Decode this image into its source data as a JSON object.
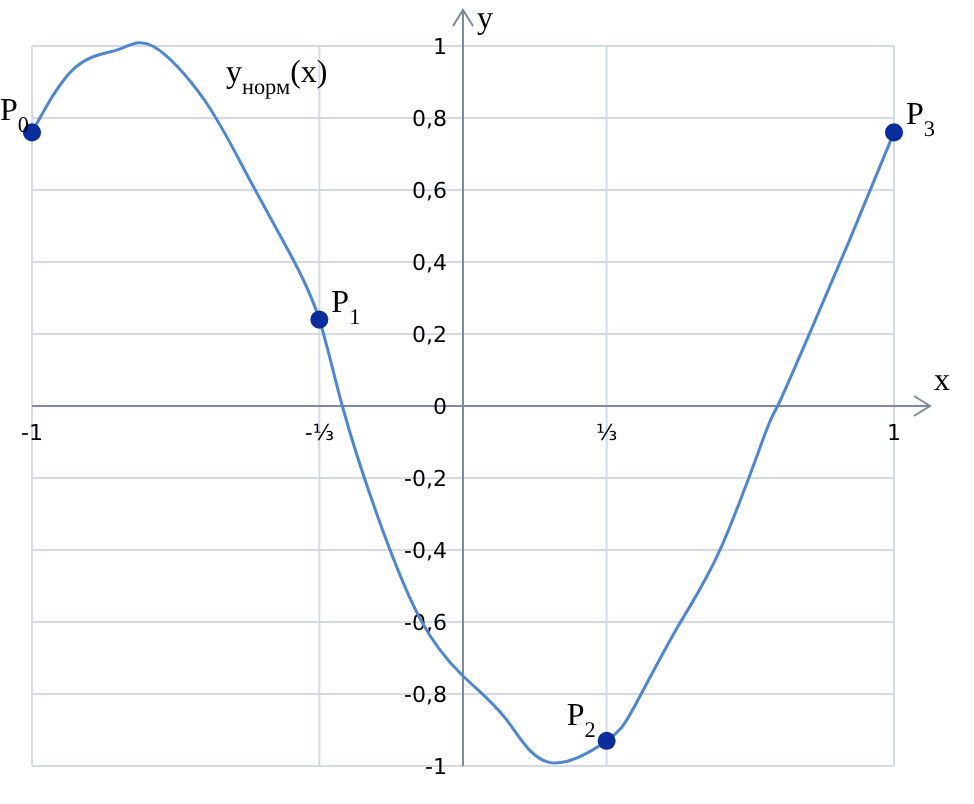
{
  "chart_data": {
    "type": "line",
    "xlabel": "x",
    "ylabel": "y",
    "grid": true,
    "xlim": [
      -1,
      1
    ],
    "ylim": [
      -1,
      1
    ],
    "xticks": [
      -1,
      {
        "value": -0.3333,
        "label": "-⅓"
      },
      {
        "value": 0.3333,
        "label": "⅓"
      },
      1
    ],
    "yticks": [
      {
        "value": -1,
        "label": "-1"
      },
      {
        "value": -0.8,
        "label": "-0,8"
      },
      {
        "value": -0.6,
        "label": "-0,6"
      },
      {
        "value": -0.4,
        "label": "-0,4"
      },
      {
        "value": -0.2,
        "label": "-0,2"
      },
      {
        "value": 0,
        "label": "0"
      },
      {
        "value": 0.2,
        "label": "0,2"
      },
      {
        "value": 0.4,
        "label": "0,4"
      },
      {
        "value": 0.6,
        "label": "0,6"
      },
      {
        "value": 0.8,
        "label": "0,8"
      },
      {
        "value": 1,
        "label": "1"
      }
    ],
    "series": [
      {
        "name": "y$_{норм}$(x)",
        "color": "#4f86d0",
        "marker": "none",
        "x": [
          -1,
          -0.9,
          -0.8,
          -0.72,
          -0.6,
          -0.5,
          -0.4,
          -0.3333,
          -0.28,
          -0.2,
          -0.1,
          0,
          0.1,
          0.2,
          0.3333,
          0.4,
          0.5,
          0.6,
          0.7,
          0.73,
          0.8,
          0.9,
          1
        ],
        "values": [
          0.76,
          0.94,
          0.99,
          1,
          0.85,
          0.64,
          0.42,
          0.24,
          0,
          -0.3,
          -0.59,
          -0.75,
          -0.87,
          -0.99,
          -0.93,
          -0.83,
          -0.61,
          -0.39,
          -0.08,
          0,
          0.19,
          0.47,
          0.76
        ]
      },
      {
        "type": "scatter",
        "color": "#0a2d9c",
        "marker": "circle",
        "x": [
          -1,
          -0.3333,
          0.3333,
          1
        ],
        "values": [
          0.76,
          0.24,
          -0.93,
          0.76
        ]
      }
    ],
    "annotations": [
      {
        "text": "P$_{0}$",
        "x": -1,
        "y": 0.76
      },
      {
        "text": "P$_{1}$",
        "x": -0.3333,
        "y": 0.24
      },
      {
        "text": "P$_{2}$",
        "x": 0.3333,
        "y": -0.93
      },
      {
        "text": "P$_{3}$",
        "x": 1,
        "y": 0.76
      }
    ]
  }
}
